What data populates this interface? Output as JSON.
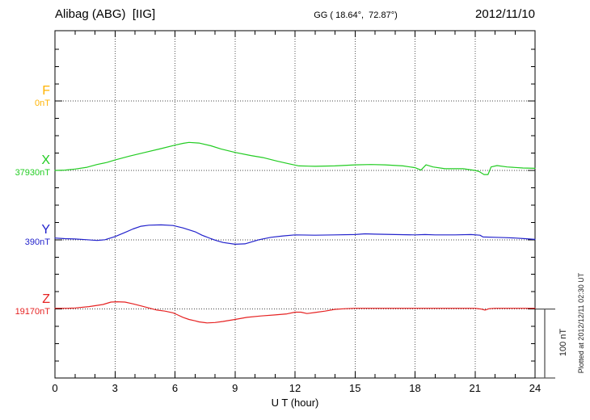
{
  "header": {
    "station": "Alibag (ABG)  [IIG]",
    "coords": "GG ( 18.64°,  72.87°)",
    "date": "2012/11/10"
  },
  "footer": {
    "plotted_note": "Plotted at 2012/12/11 02:30 UT"
  },
  "scale_bar": {
    "label": "100 nT",
    "value_nT": 100
  },
  "xaxis": {
    "label": "U T (hour)",
    "ticks": [
      0,
      3,
      6,
      9,
      12,
      15,
      18,
      21,
      24
    ],
    "minor_step_hours": 1
  },
  "chart_data": {
    "type": "line",
    "title": "Alibag (ABG) magnetogram 2012/11/10",
    "x": "UT hours",
    "x_range": [
      0,
      24
    ],
    "grid": "dotted vertical lines every 3 h; dotted horizontal baseline per component",
    "nT_per_division": 100,
    "legend_position": "left margin, one label per trace baseline",
    "series": [
      {
        "id": "F",
        "label": "F",
        "baseline_label": "0nT",
        "color": "#FFB300",
        "points": []
      },
      {
        "id": "X",
        "label": "X",
        "baseline_label": "37930nT",
        "color": "#22CC22",
        "points": [
          [
            0,
            0
          ],
          [
            0.5,
            0.5
          ],
          [
            1,
            2
          ],
          [
            1.6,
            4.5
          ],
          [
            2.1,
            8.5
          ],
          [
            2.6,
            11.5
          ],
          [
            3,
            15
          ],
          [
            3.7,
            20.5
          ],
          [
            4.5,
            26
          ],
          [
            5.3,
            31.5
          ],
          [
            6,
            36.5
          ],
          [
            6.4,
            39
          ],
          [
            6.7,
            40.5
          ],
          [
            7.2,
            39.5
          ],
          [
            7.8,
            35.5
          ],
          [
            8.3,
            31
          ],
          [
            9,
            26
          ],
          [
            9.8,
            21.5
          ],
          [
            10.4,
            18.5
          ],
          [
            11.1,
            13.5
          ],
          [
            11.7,
            9.5
          ],
          [
            12.2,
            6.5
          ],
          [
            13,
            6
          ],
          [
            14,
            6.5
          ],
          [
            15,
            8
          ],
          [
            15.8,
            8.5
          ],
          [
            16.5,
            8
          ],
          [
            17.4,
            6.5
          ],
          [
            18,
            4
          ],
          [
            18.3,
            0.5
          ],
          [
            18.55,
            8
          ],
          [
            18.9,
            5
          ],
          [
            19.5,
            2.5
          ],
          [
            20.4,
            2.5
          ],
          [
            21,
            0
          ],
          [
            21.2,
            -1.5
          ],
          [
            21.45,
            -6
          ],
          [
            21.65,
            -6
          ],
          [
            21.8,
            5
          ],
          [
            22.1,
            7
          ],
          [
            22.6,
            5
          ],
          [
            23.4,
            3.5
          ],
          [
            24,
            3
          ]
        ]
      },
      {
        "id": "Y",
        "label": "Y",
        "baseline_label": "390nT",
        "color": "#2222CC",
        "points": [
          [
            0,
            2.5
          ],
          [
            0.5,
            1.5
          ],
          [
            1,
            1
          ],
          [
            1.6,
            0
          ],
          [
            2.1,
            -1
          ],
          [
            2.5,
            0
          ],
          [
            3,
            4.5
          ],
          [
            3.5,
            10.5
          ],
          [
            3.9,
            15.5
          ],
          [
            4.3,
            19.5
          ],
          [
            4.7,
            21
          ],
          [
            5.3,
            21.5
          ],
          [
            5.9,
            20.5
          ],
          [
            6.4,
            17
          ],
          [
            7,
            11.5
          ],
          [
            7.35,
            6.5
          ],
          [
            7.8,
            1.5
          ],
          [
            8.05,
            -1
          ],
          [
            8.4,
            -4
          ],
          [
            9,
            -6.5
          ],
          [
            9.5,
            -6
          ],
          [
            10.2,
            0
          ],
          [
            10.8,
            3.5
          ],
          [
            11.4,
            5.5
          ],
          [
            12,
            7
          ],
          [
            13,
            6.5
          ],
          [
            14,
            7
          ],
          [
            15,
            7.5
          ],
          [
            15.5,
            8.5
          ],
          [
            16,
            8
          ],
          [
            17,
            7.5
          ],
          [
            18,
            7
          ],
          [
            18.5,
            7.5
          ],
          [
            19,
            7
          ],
          [
            20,
            7
          ],
          [
            20.8,
            7.5
          ],
          [
            21.25,
            6.5
          ],
          [
            21.4,
            4
          ],
          [
            22,
            3.5
          ],
          [
            22.5,
            3
          ],
          [
            23,
            2.5
          ],
          [
            23.5,
            1.5
          ],
          [
            24,
            0.5
          ]
        ]
      },
      {
        "id": "Z",
        "label": "Z",
        "baseline_label": "19170nT",
        "color": "#E62222",
        "points": [
          [
            0,
            1
          ],
          [
            0.7,
            1.2
          ],
          [
            1,
            1.5
          ],
          [
            1.7,
            3.5
          ],
          [
            2.4,
            6.5
          ],
          [
            2.8,
            10
          ],
          [
            3.1,
            10.5
          ],
          [
            3.5,
            10
          ],
          [
            3.9,
            7.5
          ],
          [
            4.3,
            4.5
          ],
          [
            4.7,
            1.5
          ],
          [
            5.1,
            -1.5
          ],
          [
            5.5,
            -3
          ],
          [
            5.9,
            -5.5
          ],
          [
            6.1,
            -8
          ],
          [
            6.4,
            -12
          ],
          [
            6.7,
            -15
          ],
          [
            7,
            -17
          ],
          [
            7.2,
            -18.5
          ],
          [
            7.6,
            -20
          ],
          [
            8,
            -19.5
          ],
          [
            8.4,
            -18
          ],
          [
            9,
            -15
          ],
          [
            9.6,
            -12
          ],
          [
            10.3,
            -10
          ],
          [
            11,
            -8.5
          ],
          [
            11.6,
            -7
          ],
          [
            12,
            -4.5
          ],
          [
            12.3,
            -4.5
          ],
          [
            12.6,
            -6.5
          ],
          [
            13,
            -5
          ],
          [
            13.5,
            -3
          ],
          [
            14,
            -0.5
          ],
          [
            14.5,
            0.5
          ],
          [
            15,
            1
          ],
          [
            16,
            1
          ],
          [
            17,
            1
          ],
          [
            18,
            1
          ],
          [
            19,
            1
          ],
          [
            20,
            1
          ],
          [
            21,
            1
          ],
          [
            21.3,
            0
          ],
          [
            21.5,
            -1.5
          ],
          [
            21.7,
            0.5
          ],
          [
            22,
            1
          ],
          [
            23,
            1
          ],
          [
            24,
            1
          ]
        ]
      }
    ]
  }
}
